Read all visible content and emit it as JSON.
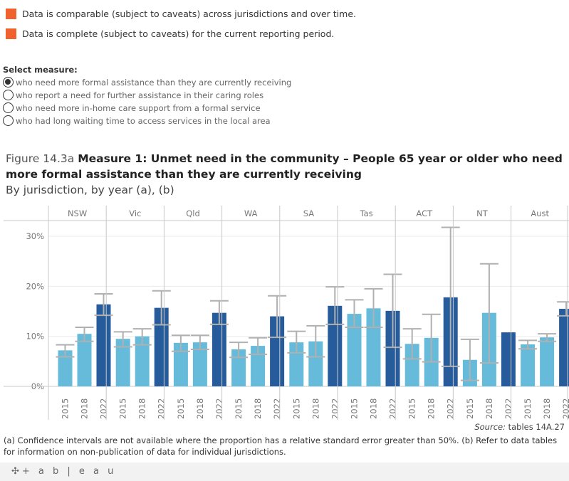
{
  "legend": [
    {
      "text": "Data is comparable (subject to caveats) across jurisdictions and over time.",
      "color": "#f0622d"
    },
    {
      "text": "Data is complete (subject to caveats) for the current reporting period.",
      "color": "#f0622d"
    }
  ],
  "selector": {
    "label": "Select measure:",
    "options": [
      {
        "text": "who need more formal assistance than they are currently receiving",
        "selected": true
      },
      {
        "text": "who report a need for further assistance in their caring roles",
        "selected": false
      },
      {
        "text": "who need more in-home care support from a formal service",
        "selected": false
      },
      {
        "text": "who had long waiting time to access services in the local area",
        "selected": false
      }
    ]
  },
  "figure": {
    "prefix": "Figure 14.3a",
    "title": "Measure 1: Unmet need in the community – People 65 year or older who need more formal assistance than they are currently receiving",
    "subtitle": "By jurisdiction, by year (a), (b)"
  },
  "chart_data": {
    "type": "bar",
    "ylim": [
      0,
      32
    ],
    "yticks": [
      "0%",
      "10%",
      "20%",
      "30%"
    ],
    "ytick_values": [
      0,
      10,
      20,
      30
    ],
    "grid": true,
    "colors": {
      "2015": "#66bbdb",
      "2018": "#66bbdb",
      "2022": "#265c9b",
      "error_bar": "#b0b0b0"
    },
    "jurisdictions": [
      "NSW",
      "Vic",
      "Qld",
      "WA",
      "SA",
      "Tas",
      "ACT",
      "NT",
      "Aust"
    ],
    "years": [
      "2015",
      "2018",
      "2022"
    ],
    "values": [
      [
        7.2,
        10.5,
        16.4
      ],
      [
        9.5,
        10.0,
        15.7
      ],
      [
        8.7,
        8.8,
        14.7
      ],
      [
        7.4,
        8.1,
        14.0
      ],
      [
        8.8,
        9.0,
        16.1
      ],
      [
        14.5,
        15.6,
        15.1
      ],
      [
        8.5,
        9.7,
        17.8
      ],
      [
        5.3,
        14.7,
        10.8
      ],
      [
        8.4,
        9.8,
        15.5
      ]
    ],
    "ci": [
      [
        [
          5.9,
          8.3
        ],
        [
          9.0,
          11.8
        ],
        [
          14.2,
          18.5
        ]
      ],
      [
        [
          7.9,
          10.9
        ],
        [
          8.3,
          11.5
        ],
        [
          12.3,
          19.1
        ]
      ],
      [
        [
          7.0,
          10.2
        ],
        [
          7.4,
          10.2
        ],
        [
          12.4,
          17.1
        ]
      ],
      [
        [
          5.8,
          8.8
        ],
        [
          6.4,
          9.7
        ],
        [
          9.8,
          18.1
        ]
      ],
      [
        [
          6.7,
          11.0
        ],
        [
          5.9,
          12.1
        ],
        [
          12.4,
          19.9
        ]
      ],
      [
        [
          11.8,
          17.3
        ],
        [
          11.8,
          19.5
        ],
        [
          7.8,
          22.4
        ]
      ],
      [
        [
          5.5,
          11.5
        ],
        [
          4.9,
          14.4
        ],
        [
          4.0,
          31.8
        ]
      ],
      [
        [
          1.2,
          9.4
        ],
        [
          4.7,
          24.5
        ],
        null
      ],
      [
        [
          7.5,
          9.2
        ],
        [
          9.0,
          10.5
        ],
        [
          14.1,
          16.9
        ]
      ]
    ]
  },
  "source": {
    "label": "Source:",
    "text": "tables 14A.27"
  },
  "note": "(a) Confidence intervals are not available where the proportion has a relative standard error greater than 50%. (b) Refer to data tables for information on non-publication of data for individual jurisdictions.",
  "footer": {
    "logo": "+ a b | e a u"
  }
}
